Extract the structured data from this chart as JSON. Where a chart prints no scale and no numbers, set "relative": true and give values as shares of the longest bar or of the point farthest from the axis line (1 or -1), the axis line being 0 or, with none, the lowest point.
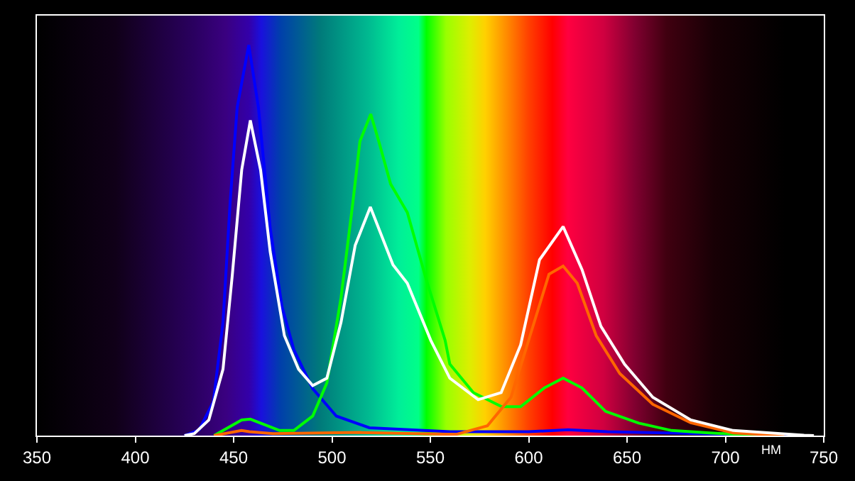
{
  "chart_data": {
    "type": "line",
    "relative": true,
    "xlabel": "НМ",
    "xlim": [
      350,
      750
    ],
    "xticks": [
      350,
      400,
      450,
      500,
      550,
      600,
      650,
      700,
      750
    ],
    "marker": "none",
    "line_style": "solid",
    "series": [
      {
        "color": "#0000ff",
        "x": [
          425,
          432.5,
          439.7,
          444.6,
          448.2,
          451.8,
          457.7,
          462.6,
          468.6,
          474.6,
          480.6,
          490.2,
          502.2,
          519,
          560,
          600,
          620,
          640,
          735
        ],
        "values": [
          0,
          0.015,
          0.087,
          0.29,
          0.596,
          0.84,
          1,
          0.84,
          0.53,
          0.33,
          0.22,
          0.12,
          0.05,
          0.02,
          0.01,
          0.01,
          0.015,
          0.01,
          0
        ]
      },
      {
        "color": "#00ff00",
        "x": [
          440,
          454.1,
          458.5,
          473.4,
          480.6,
          490.2,
          497.4,
          504.6,
          510.6,
          514.2,
          519.7,
          523.8,
          529.8,
          538.3,
          547.9,
          557.5,
          559.9,
          571.9,
          586.3,
          595.9,
          607.9,
          617.5,
          627.1,
          639.1,
          655.9,
          672.7,
          692,
          716
        ],
        "values": [
          0,
          0.04,
          0.042,
          0.013,
          0.013,
          0.05,
          0.135,
          0.353,
          0.596,
          0.753,
          0.823,
          0.753,
          0.644,
          0.571,
          0.4,
          0.244,
          0.183,
          0.11,
          0.074,
          0.074,
          0.122,
          0.147,
          0.122,
          0.062,
          0.032,
          0.013,
          0.007,
          0
        ]
      },
      {
        "color": "#ff6600",
        "x": [
          440,
          454,
          458,
          470,
          514,
          563,
          579,
          591,
          600.7,
          610.3,
          617.5,
          624.7,
          634.3,
          646.3,
          663.1,
          682.4,
          704,
          730
        ],
        "values": [
          0,
          0.013,
          0.01,
          0.005,
          0.008,
          0.003,
          0.025,
          0.098,
          0.256,
          0.413,
          0.434,
          0.39,
          0.256,
          0.159,
          0.08,
          0.033,
          0.007,
          0
        ]
      },
      {
        "color": "#ffffff",
        "x": [
          425,
          430,
          437.4,
          444.6,
          449.3,
          454.1,
          458.5,
          463.7,
          468.6,
          475.8,
          483,
          490.2,
          497.4,
          504.6,
          511.8,
          519.5,
          531,
          538.3,
          550.2,
          559.9,
          574.3,
          586,
          595.9,
          605.5,
          617.5,
          627.1,
          636.7,
          648.7,
          663.1,
          682.4,
          704,
          740,
          745
        ],
        "values": [
          0,
          0.005,
          0.04,
          0.17,
          0.41,
          0.68,
          0.807,
          0.68,
          0.47,
          0.256,
          0.17,
          0.128,
          0.147,
          0.29,
          0.487,
          0.585,
          0.437,
          0.39,
          0.244,
          0.147,
          0.092,
          0.11,
          0.232,
          0.45,
          0.535,
          0.425,
          0.28,
          0.183,
          0.098,
          0.04,
          0.013,
          0.001,
          0
        ]
      }
    ]
  }
}
